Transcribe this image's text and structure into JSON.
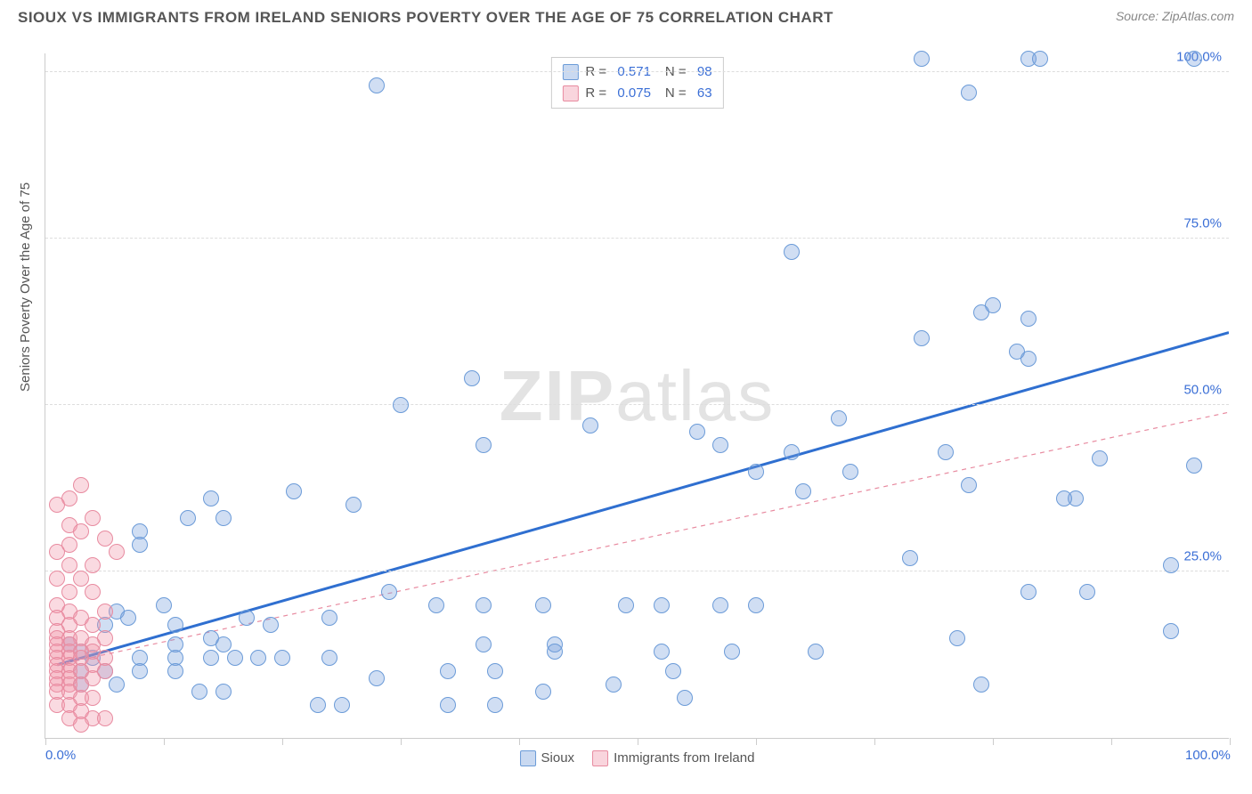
{
  "title": "SIOUX VS IMMIGRANTS FROM IRELAND SENIORS POVERTY OVER THE AGE OF 75 CORRELATION CHART",
  "source": "Source: ZipAtlas.com",
  "ylabel": "Seniors Poverty Over the Age of 75",
  "watermark": "ZIPatlas",
  "chart": {
    "type": "scatter",
    "xlim": [
      0,
      100
    ],
    "ylim": [
      0,
      103
    ],
    "x_tick_positions": [
      0,
      10,
      20,
      30,
      40,
      50,
      60,
      70,
      80,
      90,
      100
    ],
    "y_gridlines": [
      25,
      50,
      75,
      100
    ],
    "y_labels": [
      {
        "v": 25,
        "text": "25.0%"
      },
      {
        "v": 50,
        "text": "50.0%"
      },
      {
        "v": 75,
        "text": "75.0%"
      },
      {
        "v": 100,
        "text": "100.0%"
      }
    ],
    "x_labels": [
      {
        "v": 0,
        "text": "0.0%"
      },
      {
        "v": 100,
        "text": "100.0%"
      }
    ],
    "background_color": "#ffffff",
    "grid_color": "#dddddd",
    "axis_color": "#cccccc",
    "label_color": "#3b6fd6",
    "marker_radius": 9,
    "series": [
      {
        "name": "Sioux",
        "key": "a",
        "fill": "rgba(120,160,220,0.35)",
        "stroke": "#6b9bd8",
        "trend": {
          "x1": 1,
          "y1": 11,
          "x2": 100,
          "y2": 61,
          "stroke": "#2f6fd0",
          "width": 3,
          "dash": "none"
        },
        "R": "0.571",
        "N": "98",
        "points": [
          [
            74,
            102
          ],
          [
            83,
            102
          ],
          [
            84,
            102
          ],
          [
            97,
            102
          ],
          [
            28,
            98
          ],
          [
            78,
            97
          ],
          [
            63,
            73
          ],
          [
            80,
            65
          ],
          [
            79,
            64
          ],
          [
            83,
            63
          ],
          [
            74,
            60
          ],
          [
            82,
            58
          ],
          [
            83,
            57
          ],
          [
            36,
            54
          ],
          [
            30,
            50
          ],
          [
            67,
            48
          ],
          [
            55,
            46
          ],
          [
            46,
            47
          ],
          [
            57,
            44
          ],
          [
            76,
            43
          ],
          [
            63,
            43
          ],
          [
            89,
            42
          ],
          [
            97,
            41
          ],
          [
            37,
            44
          ],
          [
            60,
            40
          ],
          [
            68,
            40
          ],
          [
            78,
            38
          ],
          [
            64,
            37
          ],
          [
            87,
            36
          ],
          [
            14,
            36
          ],
          [
            21,
            37
          ],
          [
            26,
            35
          ],
          [
            12,
            33
          ],
          [
            15,
            33
          ],
          [
            86,
            36
          ],
          [
            8,
            31
          ],
          [
            8,
            29
          ],
          [
            95,
            26
          ],
          [
            73,
            27
          ],
          [
            10,
            20
          ],
          [
            6,
            19
          ],
          [
            7,
            18
          ],
          [
            5,
            17
          ],
          [
            17,
            18
          ],
          [
            11,
            17
          ],
          [
            19,
            17
          ],
          [
            24,
            18
          ],
          [
            14,
            15
          ],
          [
            15,
            14
          ],
          [
            29,
            22
          ],
          [
            11,
            14
          ],
          [
            42,
            20
          ],
          [
            37,
            20
          ],
          [
            33,
            20
          ],
          [
            49,
            20
          ],
          [
            52,
            20
          ],
          [
            60,
            20
          ],
          [
            57,
            20
          ],
          [
            37,
            14
          ],
          [
            43,
            14
          ],
          [
            43,
            13
          ],
          [
            3,
            13
          ],
          [
            2,
            14
          ],
          [
            83,
            22
          ],
          [
            88,
            22
          ],
          [
            8,
            12
          ],
          [
            11,
            12
          ],
          [
            14,
            12
          ],
          [
            16,
            12
          ],
          [
            20,
            12
          ],
          [
            4,
            12
          ],
          [
            95,
            16
          ],
          [
            52,
            13
          ],
          [
            8,
            10
          ],
          [
            18,
            12
          ],
          [
            24,
            12
          ],
          [
            3,
            10
          ],
          [
            5,
            10
          ],
          [
            77,
            15
          ],
          [
            11,
            10
          ],
          [
            28,
            9
          ],
          [
            38,
            10
          ],
          [
            34,
            10
          ],
          [
            58,
            13
          ],
          [
            65,
            13
          ],
          [
            79,
            8
          ],
          [
            3,
            8
          ],
          [
            6,
            8
          ],
          [
            48,
            8
          ],
          [
            42,
            7
          ],
          [
            23,
            5
          ],
          [
            25,
            5
          ],
          [
            34,
            5
          ],
          [
            38,
            5
          ],
          [
            53,
            10
          ],
          [
            13,
            7
          ],
          [
            15,
            7
          ],
          [
            54,
            6
          ]
        ]
      },
      {
        "name": "Immigrants from Ireland",
        "key": "b",
        "fill": "rgba(240,150,170,0.35)",
        "stroke": "#e88ba0",
        "trend": {
          "x1": 1,
          "y1": 11,
          "x2": 100,
          "y2": 49,
          "stroke": "#e88ba0",
          "width": 1.2,
          "dash": "5,5"
        },
        "R": "0.075",
        "N": "63",
        "points": [
          [
            3,
            38
          ],
          [
            2,
            36
          ],
          [
            1,
            35
          ],
          [
            4,
            33
          ],
          [
            2,
            32
          ],
          [
            3,
            31
          ],
          [
            5,
            30
          ],
          [
            2,
            29
          ],
          [
            1,
            28
          ],
          [
            2,
            26
          ],
          [
            4,
            26
          ],
          [
            6,
            28
          ],
          [
            1,
            24
          ],
          [
            3,
            24
          ],
          [
            4,
            22
          ],
          [
            2,
            22
          ],
          [
            1,
            20
          ],
          [
            2,
            19
          ],
          [
            1,
            18
          ],
          [
            3,
            18
          ],
          [
            5,
            19
          ],
          [
            2,
            17
          ],
          [
            4,
            17
          ],
          [
            1,
            16
          ],
          [
            2,
            15
          ],
          [
            1,
            15
          ],
          [
            3,
            15
          ],
          [
            5,
            15
          ],
          [
            2,
            14
          ],
          [
            4,
            14
          ],
          [
            1,
            14
          ],
          [
            1,
            13
          ],
          [
            3,
            13
          ],
          [
            2,
            13
          ],
          [
            4,
            13
          ],
          [
            1,
            12
          ],
          [
            2,
            12
          ],
          [
            3,
            12
          ],
          [
            5,
            12
          ],
          [
            1,
            11
          ],
          [
            2,
            11
          ],
          [
            4,
            11
          ],
          [
            1,
            10
          ],
          [
            2,
            10
          ],
          [
            3,
            10
          ],
          [
            5,
            10
          ],
          [
            1,
            9
          ],
          [
            2,
            9
          ],
          [
            4,
            9
          ],
          [
            1,
            8
          ],
          [
            2,
            8
          ],
          [
            3,
            8
          ],
          [
            1,
            7
          ],
          [
            2,
            7
          ],
          [
            3,
            6
          ],
          [
            4,
            6
          ],
          [
            1,
            5
          ],
          [
            2,
            5
          ],
          [
            3,
            4
          ],
          [
            4,
            3
          ],
          [
            2,
            3
          ],
          [
            5,
            3
          ],
          [
            3,
            2
          ]
        ]
      }
    ]
  },
  "legend_top": {
    "rows": [
      {
        "sw": "a",
        "R": "0.571",
        "N": "98"
      },
      {
        "sw": "b",
        "R": "0.075",
        "N": "63"
      }
    ],
    "R_label": "R =",
    "N_label": "N ="
  },
  "legend_bottom": [
    {
      "sw": "a",
      "label": "Sioux"
    },
    {
      "sw": "b",
      "label": "Immigrants from Ireland"
    }
  ]
}
